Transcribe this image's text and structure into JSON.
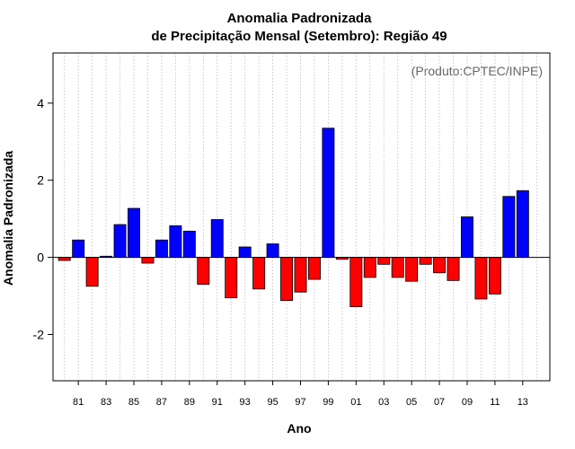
{
  "chart_data": {
    "type": "bar",
    "title": "Anomalia Padronizada",
    "subtitle": "de Precipitação Mensal (Setembro): Região 49",
    "xlabel": "Ano",
    "ylabel": "Anomalia Padronizada",
    "credit": "(Produto:CPTEC/INPE)",
    "ylim": [
      -3.2,
      5.3
    ],
    "yticks": [
      -2,
      0,
      2,
      4
    ],
    "grid": "vertical dotted",
    "positive_color": "#0000ff",
    "negative_color": "#ff0000",
    "categories": [
      "1980",
      "1981",
      "1982",
      "1983",
      "1984",
      "1985",
      "1986",
      "1987",
      "1988",
      "1989",
      "1990",
      "1991",
      "1992",
      "1993",
      "1994",
      "1995",
      "1996",
      "1997",
      "1998",
      "1999",
      "2000",
      "2001",
      "2002",
      "2003",
      "2004",
      "2005",
      "2006",
      "2007",
      "2008",
      "2009",
      "2010",
      "2011",
      "2012",
      "2013",
      "2014"
    ],
    "tick_labels": [
      "",
      "81",
      "",
      "83",
      "",
      "85",
      "",
      "87",
      "",
      "89",
      "",
      "91",
      "",
      "93",
      "",
      "95",
      "",
      "97",
      "",
      "99",
      "",
      "01",
      "",
      "03",
      "",
      "05",
      "",
      "07",
      "",
      "09",
      "",
      "11",
      "",
      "13",
      ""
    ],
    "values": [
      -0.08,
      0.45,
      -0.75,
      0.03,
      0.85,
      1.27,
      -0.15,
      0.45,
      0.82,
      0.68,
      -0.7,
      0.98,
      -1.05,
      0.27,
      -0.82,
      0.35,
      -1.12,
      -0.9,
      -0.57,
      3.35,
      -0.05,
      -1.28,
      -0.52,
      -0.18,
      -0.52,
      -0.62,
      -0.18,
      -0.4,
      -0.6,
      1.05,
      -1.08,
      -0.95,
      1.58,
      1.73,
      0.0
    ]
  }
}
